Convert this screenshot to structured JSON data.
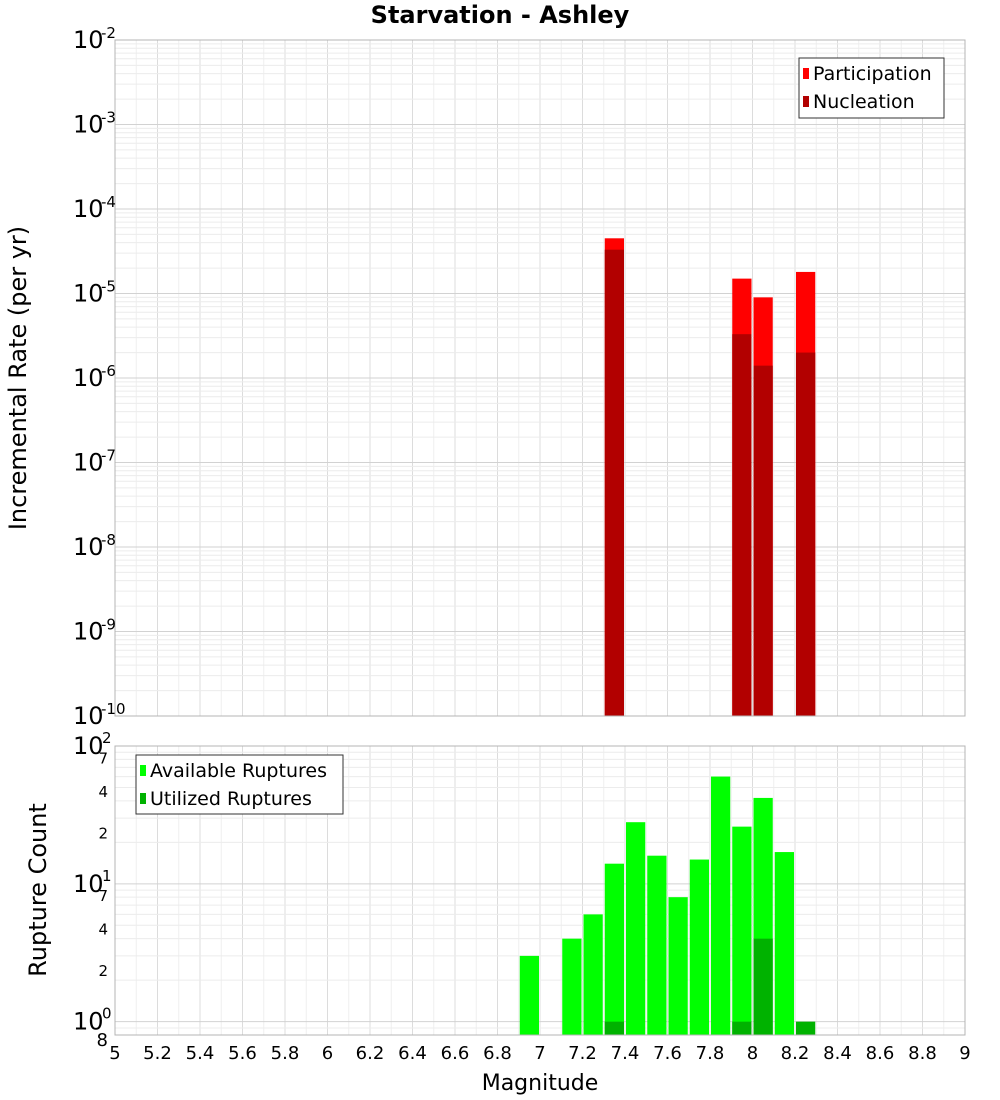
{
  "chart_data": [
    {
      "type": "bar",
      "title": "Starvation - Ashley",
      "xlabel": "",
      "ylabel": "Incremental Rate (per yr)",
      "xlim": [
        5,
        9
      ],
      "ylim": [
        1e-10,
        0.01
      ],
      "yscale": "log",
      "grid": true,
      "legend_position": "top-right",
      "y_tick_exponents": [
        "-10",
        "-9",
        "-8",
        "-7",
        "-6",
        "-5",
        "-4",
        "-3",
        "-2"
      ],
      "y_tick_base": "10",
      "series": [
        {
          "name": "Participation",
          "color": "#ff0000",
          "x": [
            7.35,
            7.95,
            8.05,
            8.25
          ],
          "values": [
            4.5e-05,
            1.5e-05,
            9e-06,
            1.8e-05
          ]
        },
        {
          "name": "Nucleation",
          "color": "#b20000",
          "x": [
            7.35,
            7.95,
            8.05,
            8.25
          ],
          "values": [
            3.3e-05,
            3.3e-06,
            1.4e-06,
            2e-06
          ]
        }
      ]
    },
    {
      "type": "bar",
      "xlabel": "Magnitude",
      "ylabel": "Rupture Count",
      "xlim": [
        5,
        9
      ],
      "ylim": [
        0.8,
        100
      ],
      "yscale": "log",
      "grid": true,
      "legend_position": "top-left",
      "x_ticks": [
        "5",
        "5.2",
        "5.4",
        "5.6",
        "5.8",
        "6",
        "6.2",
        "6.4",
        "6.6",
        "6.8",
        "7",
        "7.2",
        "7.4",
        "7.6",
        "7.8",
        "8",
        "8.2",
        "8.4",
        "8.6",
        "8.8",
        "9"
      ],
      "y_tick_labels": {
        "major": [
          {
            "value": 1,
            "base": "10",
            "exp": "0"
          },
          {
            "value": 10,
            "base": "10",
            "exp": "1"
          },
          {
            "value": 100,
            "base": "10",
            "exp": "2"
          }
        ],
        "minor": [
          {
            "value": 0.8,
            "label": "8"
          },
          {
            "value": 2,
            "label": "2"
          },
          {
            "value": 4,
            "label": "4"
          },
          {
            "value": 7,
            "label": "7"
          },
          {
            "value": 20,
            "label": "2"
          },
          {
            "value": 40,
            "label": "4"
          },
          {
            "value": 70,
            "label": "7"
          }
        ]
      },
      "series": [
        {
          "name": "Available Ruptures",
          "color": "#00ff00",
          "x": [
            6.95,
            7.15,
            7.25,
            7.35,
            7.45,
            7.55,
            7.65,
            7.75,
            7.85,
            7.95,
            8.05,
            8.15
          ],
          "values": [
            3,
            4,
            6,
            14,
            28,
            16,
            8,
            15,
            60,
            26,
            42,
            17
          ]
        },
        {
          "name": "Utilized Ruptures",
          "color": "#00b200",
          "x": [
            7.35,
            7.95,
            8.05,
            8.25
          ],
          "values": [
            1,
            1,
            4,
            1
          ]
        }
      ]
    }
  ]
}
